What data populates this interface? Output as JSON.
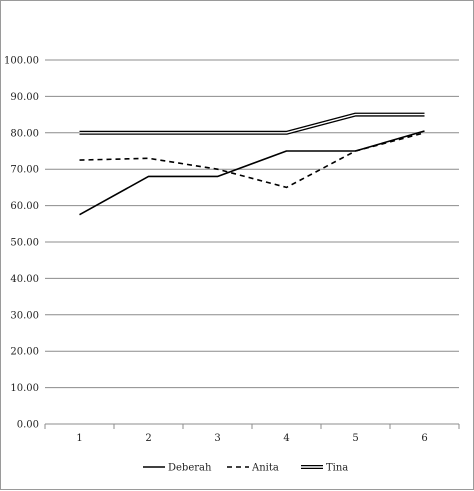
{
  "chart_data": {
    "type": "line",
    "title": "",
    "xlabel": "",
    "ylabel": "",
    "x": [
      1,
      2,
      3,
      4,
      5,
      6
    ],
    "x_tick_labels": [
      "1",
      "2",
      "3",
      "4",
      "5",
      "6"
    ],
    "ylim": [
      0,
      100
    ],
    "y_tick_labels": [
      "0.00",
      "10.00",
      "20.00",
      "30.00",
      "40.00",
      "50.00",
      "60.00",
      "70.00",
      "80.00",
      "90.00",
      "100.00"
    ],
    "grid": "horizontal",
    "legend_position": "bottom",
    "series": [
      {
        "name": "Deberah",
        "style": "solid",
        "color": "#000000",
        "values": [
          57.5,
          68,
          68,
          75,
          75,
          80.5
        ]
      },
      {
        "name": "Anita",
        "style": "dashed",
        "color": "#000000",
        "values": [
          72.5,
          73,
          70,
          65,
          75,
          80
        ]
      },
      {
        "name": "Tina",
        "style": "double",
        "color": "#000000",
        "values": [
          80,
          80,
          80,
          80,
          85,
          85
        ]
      }
    ]
  }
}
